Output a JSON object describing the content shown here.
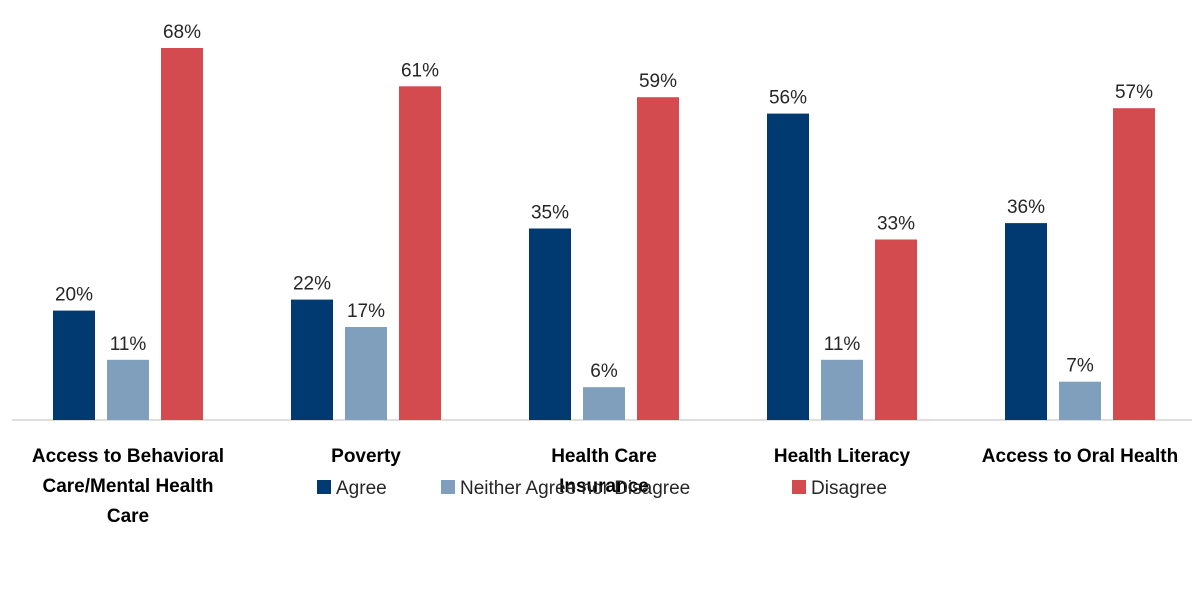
{
  "chart_data": {
    "type": "bar",
    "categories": [
      [
        "Access to Behavioral",
        "Care/Mental Health",
        "Care"
      ],
      [
        "Poverty"
      ],
      [
        "Health Care",
        "Insurance"
      ],
      [
        "Health Literacy"
      ],
      [
        "Access to Oral Health"
      ]
    ],
    "series": [
      {
        "name": "Agree",
        "color": "#003a70",
        "values": [
          20,
          22,
          35,
          56,
          36
        ],
        "labels": [
          "20%",
          "22%",
          "35%",
          "56%",
          "36%"
        ]
      },
      {
        "name": "Neither Agree nor Disagree",
        "color": "#7f9fbd",
        "values": [
          11,
          17,
          6,
          11,
          7
        ],
        "labels": [
          "11%",
          "17%",
          "6%",
          "11%",
          "7%"
        ]
      },
      {
        "name": "Disagree",
        "color": "#d44b4f",
        "values": [
          68,
          61,
          59,
          33,
          57
        ],
        "labels": [
          "68%",
          "61%",
          "59%",
          "33%",
          "57%"
        ]
      }
    ],
    "ylim": [
      0,
      68
    ],
    "grid": false,
    "legend_position": "bottom"
  }
}
